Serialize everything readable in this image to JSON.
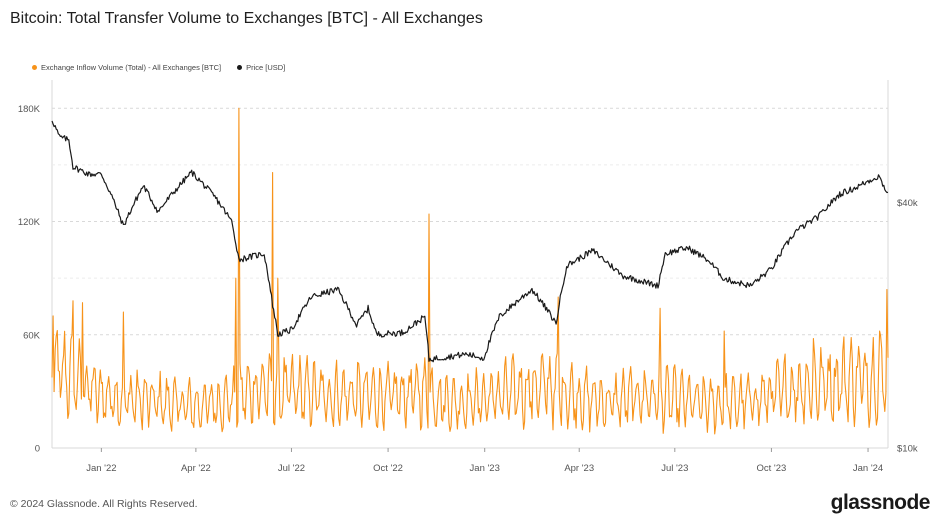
{
  "title": "Bitcoin: Total Transfer Volume to Exchanges [BTC] - All Exchanges",
  "footer": "© 2024 Glassnode. All Rights Reserved.",
  "brand": "glassnode",
  "colors": {
    "inflow": "#f7931a",
    "price": "#1a1a1a",
    "grid": "#d9d9d9"
  },
  "chart_data": {
    "type": "line",
    "grid": true,
    "legend_placement": "top-left",
    "series": [
      {
        "name": "Exchange Inflow Volume (Total) - All Exchanges [BTC]",
        "axis": "left",
        "color": "#f7931a"
      },
      {
        "name": "Price [USD]",
        "axis": "right",
        "color": "#1a1a1a"
      }
    ],
    "x_axis": {
      "range": [
        "2021-11-15",
        "2024-01-20"
      ],
      "ticks": [
        {
          "date": "2022-01-01",
          "label": "Jan '22"
        },
        {
          "date": "2022-04-01",
          "label": "Apr '22"
        },
        {
          "date": "2022-07-01",
          "label": "Jul '22"
        },
        {
          "date": "2022-10-01",
          "label": "Oct '22"
        },
        {
          "date": "2023-01-01",
          "label": "Jan '23"
        },
        {
          "date": "2023-04-01",
          "label": "Apr '23"
        },
        {
          "date": "2023-07-01",
          "label": "Jul '23"
        },
        {
          "date": "2023-10-01",
          "label": "Oct '23"
        },
        {
          "date": "2024-01-01",
          "label": "Jan '24"
        }
      ]
    },
    "y_left": {
      "scale": "linear",
      "range": [
        0,
        195000
      ],
      "ticks": [
        {
          "value": 0,
          "label": "0"
        },
        {
          "value": 60000,
          "label": "60K"
        },
        {
          "value": 120000,
          "label": "120K"
        },
        {
          "value": 180000,
          "label": "180K"
        }
      ]
    },
    "y_right": {
      "scale": "log",
      "range": [
        10000,
        80000
      ],
      "ticks": [
        {
          "value": 10000,
          "label": "$10k"
        },
        {
          "value": 40000,
          "label": "$40k"
        }
      ]
    },
    "inflow_baseline": [
      [
        "2021-11-15",
        42000
      ],
      [
        "2021-12-10",
        35000
      ],
      [
        "2022-01-01",
        28000
      ],
      [
        "2022-02-01",
        26000
      ],
      [
        "2022-03-01",
        24000
      ],
      [
        "2022-04-01",
        22000
      ],
      [
        "2022-05-01",
        25000
      ],
      [
        "2022-06-01",
        32000
      ],
      [
        "2022-07-01",
        30000
      ],
      [
        "2022-08-01",
        28000
      ],
      [
        "2022-09-01",
        28000
      ],
      [
        "2022-10-01",
        27000
      ],
      [
        "2022-11-01",
        30000
      ],
      [
        "2022-12-01",
        24000
      ],
      [
        "2023-01-01",
        26000
      ],
      [
        "2023-02-01",
        30000
      ],
      [
        "2023-03-01",
        33000
      ],
      [
        "2023-04-01",
        27000
      ],
      [
        "2023-05-01",
        24000
      ],
      [
        "2023-06-01",
        28000
      ],
      [
        "2023-07-01",
        26000
      ],
      [
        "2023-08-01",
        23000
      ],
      [
        "2023-09-01",
        24000
      ],
      [
        "2023-10-01",
        28000
      ],
      [
        "2023-11-01",
        33000
      ],
      [
        "2023-12-01",
        35000
      ],
      [
        "2024-01-15",
        38000
      ]
    ],
    "inflow_spikes": [
      [
        "2021-11-16",
        70000
      ],
      [
        "2021-12-05",
        78000
      ],
      [
        "2021-12-14",
        77000
      ],
      [
        "2022-01-22",
        72000
      ],
      [
        "2022-05-09",
        90000
      ],
      [
        "2022-05-12",
        180000
      ],
      [
        "2022-06-13",
        146000
      ],
      [
        "2022-06-18",
        90000
      ],
      [
        "2022-11-09",
        124000
      ],
      [
        "2023-03-12",
        80000
      ],
      [
        "2023-06-17",
        74000
      ],
      [
        "2023-08-17",
        62000
      ],
      [
        "2023-11-10",
        58000
      ],
      [
        "2024-01-12",
        62000
      ],
      [
        "2024-01-19",
        84000
      ]
    ],
    "price_usd": [
      [
        "2021-11-15",
        64000
      ],
      [
        "2021-11-22",
        58000
      ],
      [
        "2021-12-01",
        57000
      ],
      [
        "2021-12-05",
        49000
      ],
      [
        "2021-12-20",
        47000
      ],
      [
        "2022-01-01",
        47000
      ],
      [
        "2022-01-10",
        42000
      ],
      [
        "2022-01-22",
        35000
      ],
      [
        "2022-02-10",
        44000
      ],
      [
        "2022-02-24",
        38000
      ],
      [
        "2022-03-28",
        47500
      ],
      [
        "2022-04-20",
        41000
      ],
      [
        "2022-05-05",
        36000
      ],
      [
        "2022-05-12",
        29000
      ],
      [
        "2022-06-05",
        30000
      ],
      [
        "2022-06-13",
        22500
      ],
      [
        "2022-06-18",
        19000
      ],
      [
        "2022-07-01",
        19500
      ],
      [
        "2022-07-20",
        23500
      ],
      [
        "2022-08-14",
        24500
      ],
      [
        "2022-09-01",
        20000
      ],
      [
        "2022-09-12",
        22000
      ],
      [
        "2022-09-20",
        19000
      ],
      [
        "2022-10-15",
        19200
      ],
      [
        "2022-11-05",
        21000
      ],
      [
        "2022-11-09",
        16500
      ],
      [
        "2022-12-15",
        17000
      ],
      [
        "2022-12-31",
        16600
      ],
      [
        "2023-01-15",
        21000
      ],
      [
        "2023-02-15",
        24500
      ],
      [
        "2023-03-10",
        20200
      ],
      [
        "2023-03-20",
        28000
      ],
      [
        "2023-04-14",
        30500
      ],
      [
        "2023-05-12",
        26500
      ],
      [
        "2023-06-15",
        25000
      ],
      [
        "2023-06-22",
        30000
      ],
      [
        "2023-07-13",
        31000
      ],
      [
        "2023-08-01",
        29000
      ],
      [
        "2023-08-17",
        26000
      ],
      [
        "2023-09-11",
        25000
      ],
      [
        "2023-10-01",
        27500
      ],
      [
        "2023-10-24",
        34000
      ],
      [
        "2023-11-15",
        37000
      ],
      [
        "2023-12-05",
        42000
      ],
      [
        "2023-12-20",
        43500
      ],
      [
        "2024-01-11",
        46500
      ],
      [
        "2024-01-20",
        42000
      ]
    ]
  }
}
